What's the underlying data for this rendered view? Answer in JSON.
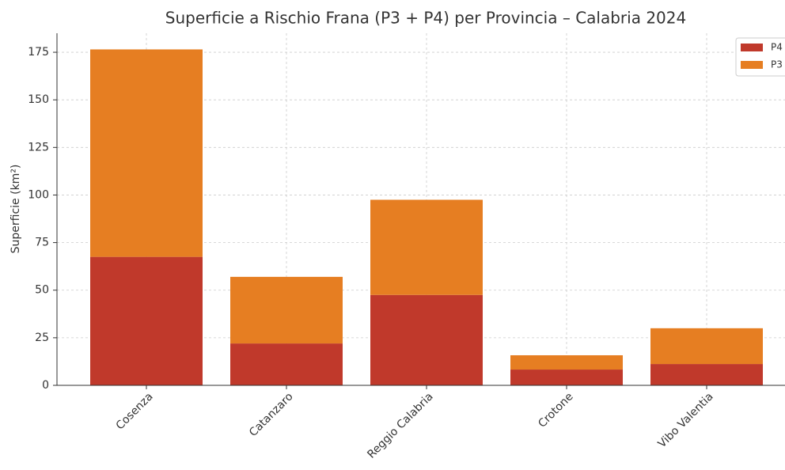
{
  "chart_data": {
    "type": "stacked_bar",
    "title": "Superficie a Rischio Frana (P3 + P4) per Provincia – Calabria 2024",
    "ylabel": "Superficie (km²)",
    "categories": [
      "Cosenza",
      "Catanzaro",
      "Reggio Calabria",
      "Crotone",
      "Vibo Valentia"
    ],
    "series": [
      {
        "name": "P4",
        "color": "#c0392b",
        "values": [
          67.5,
          22,
          47.5,
          8.3,
          11.2
        ]
      },
      {
        "name": "P3",
        "color": "#e67e22",
        "values": [
          109,
          35,
          50,
          7.5,
          18.8
        ]
      }
    ],
    "ylim": [
      0,
      185
    ],
    "yticks": [
      0,
      25,
      50,
      75,
      100,
      125,
      150,
      175
    ],
    "grid": true,
    "legend": "upper right"
  }
}
